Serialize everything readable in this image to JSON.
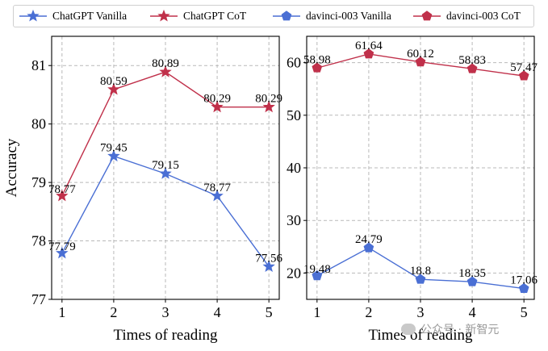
{
  "legend": [
    {
      "label": "ChatGPT Vanilla",
      "color": "#4a6fd4",
      "marker": "star"
    },
    {
      "label": "ChatGPT CoT",
      "color": "#c0304a",
      "marker": "star"
    },
    {
      "label": "davinci-003 Vanilla",
      "color": "#4a6fd4",
      "marker": "pentagon"
    },
    {
      "label": "davinci-003 CoT",
      "color": "#c0304a",
      "marker": "pentagon"
    }
  ],
  "watermark": "公众号 · 新智元",
  "chart_data": [
    {
      "type": "line",
      "xlabel": "Times of reading",
      "ylabel": "Accuracy",
      "x": [
        1,
        2,
        3,
        4,
        5
      ],
      "xticks": [
        "1",
        "2",
        "3",
        "4",
        "5"
      ],
      "ylim": [
        77,
        81.5
      ],
      "yticks": [
        "77",
        "78",
        "79",
        "80",
        "81"
      ],
      "grid": true,
      "series": [
        {
          "name": "ChatGPT Vanilla",
          "color": "#4a6fd4",
          "marker": "star",
          "values": [
            77.79,
            79.45,
            79.15,
            78.77,
            77.56
          ],
          "labels": [
            "77.79",
            "79.45",
            "79.15",
            "78.77",
            "77.56"
          ]
        },
        {
          "name": "ChatGPT CoT",
          "color": "#c0304a",
          "marker": "star",
          "values": [
            78.77,
            80.59,
            80.89,
            80.29,
            80.29
          ],
          "labels": [
            "78.77",
            "80.59",
            "80.89",
            "80.29",
            "80.29"
          ]
        }
      ]
    },
    {
      "type": "line",
      "xlabel": "Times of reading",
      "ylabel": "",
      "x": [
        1,
        2,
        3,
        4,
        5
      ],
      "xticks": [
        "1",
        "2",
        "3",
        "4",
        "5"
      ],
      "ylim": [
        15,
        65
      ],
      "yticks": [
        "20",
        "30",
        "40",
        "50",
        "60"
      ],
      "grid": true,
      "series": [
        {
          "name": "davinci-003 Vanilla",
          "color": "#4a6fd4",
          "marker": "pentagon",
          "values": [
            19.48,
            24.79,
            18.8,
            18.35,
            17.06
          ],
          "labels": [
            "19.48",
            "24.79",
            "18.8",
            "18.35",
            "17.06"
          ]
        },
        {
          "name": "davinci-003 CoT",
          "color": "#c0304a",
          "marker": "pentagon",
          "values": [
            58.98,
            61.64,
            60.12,
            58.83,
            57.47
          ],
          "labels": [
            "58.98",
            "61.64",
            "60.12",
            "58.83",
            "57.47"
          ]
        }
      ]
    }
  ]
}
